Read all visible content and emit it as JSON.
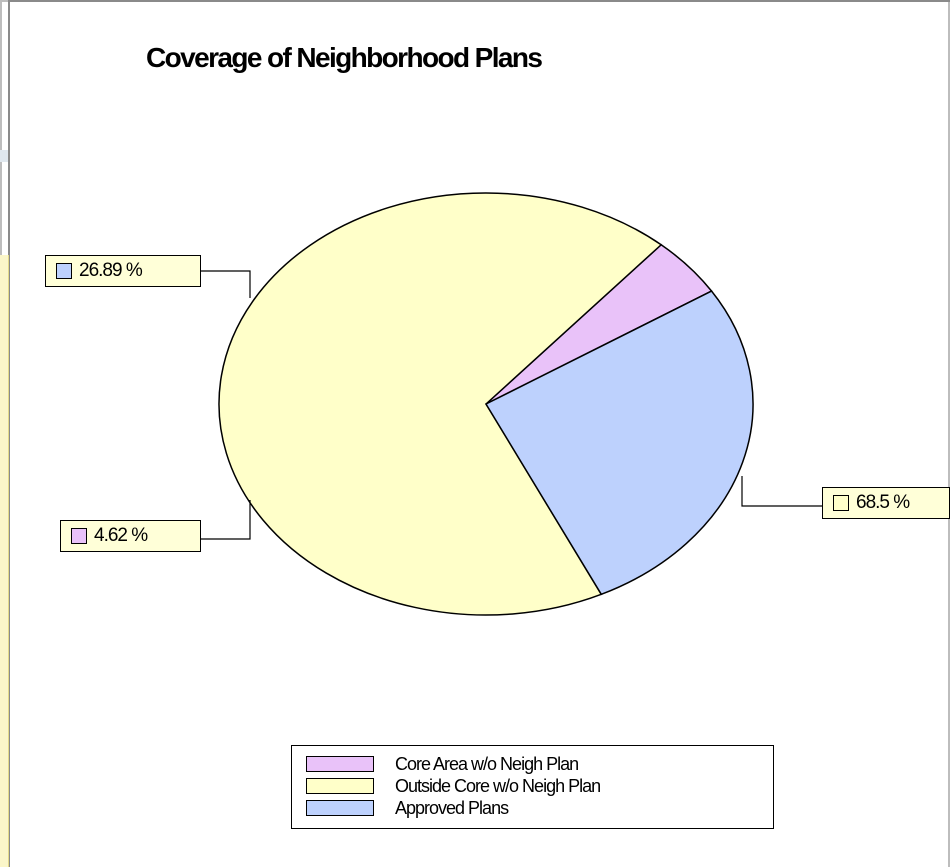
{
  "chart_data": {
    "type": "pie",
    "title": "Coverage of Neighborhood Plans",
    "slices": [
      {
        "name": "Core Area w/o Neigh Plan",
        "value": 4.62,
        "label": "4.62 %",
        "color": "#e9c2f9"
      },
      {
        "name": "Outside Core w/o Neigh Plan",
        "value": 68.5,
        "label": "68.5 %",
        "color": "#ffffc9"
      },
      {
        "name": "Approved Plans",
        "value": 26.89,
        "label": "26.89 %",
        "color": "#bdd1fd"
      }
    ],
    "legend_position": "bottom"
  },
  "colors": {
    "outline": "#000000",
    "label_background": "#ffffd8"
  }
}
